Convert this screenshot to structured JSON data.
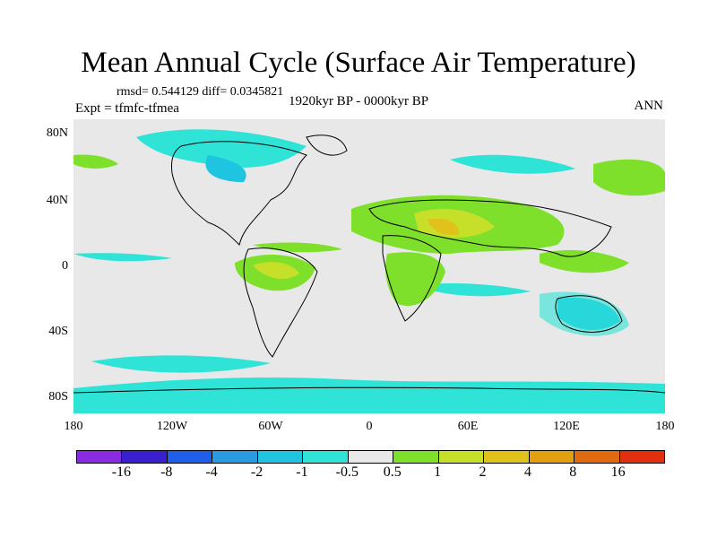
{
  "title": "Mean Annual Cycle (Surface Air Temperature)",
  "stats": "rmsd= 0.544129 diff= 0.0345821",
  "period": "1920kyr BP - 0000kyr BP",
  "experiment": "Expt = tfmfc-tfmea",
  "season": "ANN",
  "lat_labels": [
    "80N",
    "40N",
    "0",
    "40S",
    "80S"
  ],
  "lon_labels": [
    "180",
    "120W",
    "60W",
    "0",
    "60E",
    "120E",
    "180"
  ],
  "colorbar": {
    "colors": [
      "#8a2be2",
      "#3a1fd0",
      "#1e5ee8",
      "#2a9be0",
      "#1fc5e0",
      "#2fe3d6",
      "#e8e8e8",
      "#7ee02a",
      "#c6e02a",
      "#e0c21a",
      "#e0a010",
      "#e06a10",
      "#e03010"
    ],
    "labels": [
      "-16",
      "-8",
      "-4",
      "-2",
      "-1",
      "-0.5",
      "0.5",
      "1",
      "2",
      "4",
      "8",
      "16"
    ]
  }
}
